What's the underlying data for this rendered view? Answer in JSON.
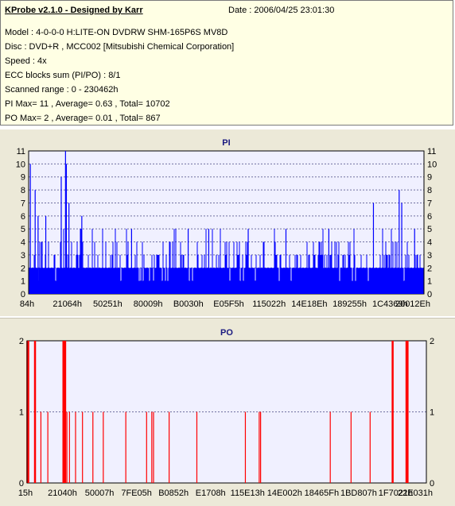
{
  "info": {
    "header": "KProbe v2.1.0 - Designed by Karr",
    "date": "Date : 2006/04/25 23:01:30",
    "model": "Model : 4-0-0-0 H:LITE-ON DVDRW SHM-165P6S MV8D",
    "disc": "Disc : DVD+R , MCC002 [Mitsubishi Chemical Corporation]",
    "speed": "Speed : 4x",
    "ecc": "ECC blocks sum (PI/PO) : 8/1",
    "range": "Scanned range : 0 - 230462h",
    "pi_stats": "PI Max= 11 , Average= 0.63 , Total= 10702",
    "po_stats": "PO Max= 2 , Average= 0.01 , Total= 867"
  },
  "colors": {
    "pi": "#0000ff",
    "po": "#ff0000",
    "plot_bg": "#f0f0ff",
    "panel_bg": "#ece9d8"
  },
  "chart_data": [
    {
      "type": "bar",
      "title": "PI",
      "ylim": [
        0,
        11
      ],
      "yticks": [
        0,
        1,
        2,
        3,
        4,
        5,
        6,
        7,
        8,
        9,
        10,
        11
      ],
      "xlim": [
        0,
        230462
      ],
      "xtick_labels": [
        "84h",
        "21064h",
        "50251h",
        "80009h",
        "B0030h",
        "E05F5h",
        "115022h",
        "14E18Eh",
        "189255h",
        "1C4369h",
        "20012Eh"
      ],
      "grid": true,
      "baseline": 2,
      "peaks": [
        [
          1000,
          10
        ],
        [
          3800,
          8
        ],
        [
          5500,
          6
        ],
        [
          10000,
          6
        ],
        [
          19000,
          9
        ],
        [
          21500,
          11
        ],
        [
          22000,
          10
        ],
        [
          23500,
          7
        ],
        [
          31000,
          6
        ],
        [
          60000,
          5
        ],
        [
          93000,
          5
        ],
        [
          105000,
          5
        ],
        [
          128000,
          5
        ],
        [
          150000,
          5
        ],
        [
          175000,
          5
        ],
        [
          201000,
          7
        ],
        [
          216000,
          8
        ],
        [
          217500,
          7
        ],
        [
          225000,
          5
        ]
      ]
    },
    {
      "type": "bar",
      "title": "PO",
      "ylim": [
        0,
        2
      ],
      "yticks": [
        0,
        1,
        2
      ],
      "xlim": [
        0,
        230462
      ],
      "xtick_labels": [
        "15h",
        "21040h",
        "50007h",
        "7FE05h",
        "B0852h",
        "E1708h",
        "115E13h",
        "14E002h",
        "18465Fh",
        "1BD807h",
        "1F7021h",
        "22E031h"
      ],
      "grid": true,
      "points": [
        [
          200,
          2
        ],
        [
          700,
          2
        ],
        [
          4600,
          2
        ],
        [
          8000,
          1
        ],
        [
          12000,
          1
        ],
        [
          21000,
          2
        ],
        [
          21600,
          2
        ],
        [
          22000,
          2
        ],
        [
          23000,
          1
        ],
        [
          24500,
          1
        ],
        [
          28000,
          1
        ],
        [
          32000,
          1
        ],
        [
          38000,
          1
        ],
        [
          44000,
          1
        ],
        [
          57000,
          1
        ],
        [
          69000,
          1
        ],
        [
          72000,
          1
        ],
        [
          73000,
          1
        ],
        [
          82000,
          1
        ],
        [
          98000,
          1
        ],
        [
          126000,
          1
        ],
        [
          134000,
          1
        ],
        [
          134800,
          1
        ],
        [
          175000,
          1
        ],
        [
          187000,
          1
        ],
        [
          198000,
          1
        ],
        [
          211000,
          2
        ],
        [
          219000,
          2
        ],
        [
          219600,
          2
        ]
      ]
    }
  ]
}
